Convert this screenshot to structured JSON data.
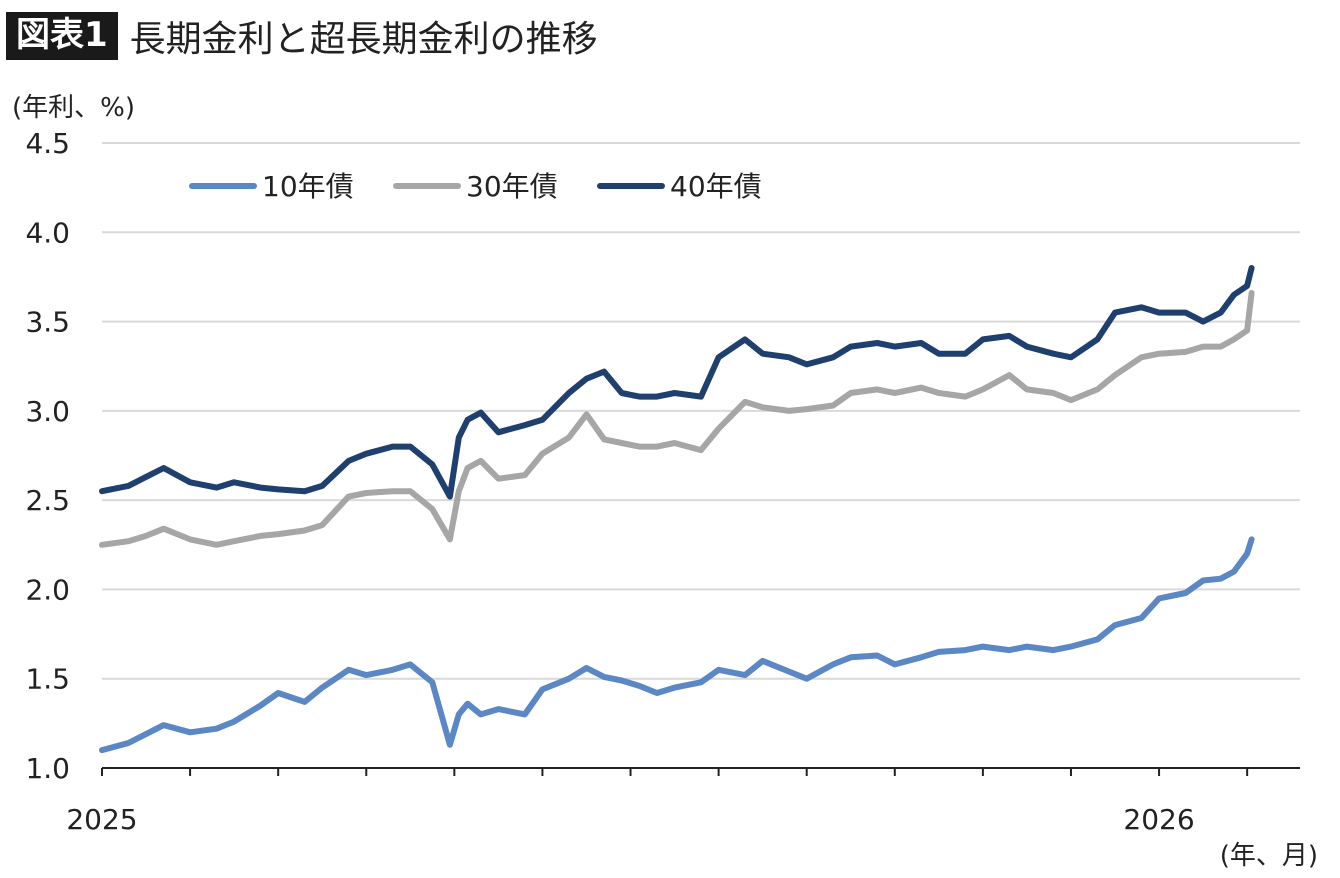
{
  "header": {
    "badge": "図表1",
    "title": "長期金利と超長期金利の推移"
  },
  "chart_data": {
    "type": "line",
    "title": "長期金利と超長期金利の推移",
    "ylabel": "(年利、%)",
    "xlabel": "(年、月)",
    "ylim": [
      1.0,
      4.5
    ],
    "yticks": [
      "1.0",
      "1.5",
      "2.0",
      "2.5",
      "3.0",
      "3.5",
      "4.0",
      "4.5"
    ],
    "xlim": [
      0,
      13.6
    ],
    "xticks": [
      0,
      1,
      2,
      3,
      4,
      5,
      6,
      7,
      8,
      9,
      10,
      11,
      12,
      13
    ],
    "xtick_labels": [
      {
        "x": 0,
        "label": "2025"
      },
      {
        "x": 12,
        "label": "2026"
      }
    ],
    "grid": "horizontal",
    "legend": "top-left",
    "colors": {
      "10y": "#5b87c5",
      "30y": "#a6a6a6",
      "40y": "#1f3f6e"
    },
    "series": [
      {
        "name": "10年債",
        "color": "#5b87c5",
        "x": [
          0,
          0.3,
          0.5,
          0.7,
          1.0,
          1.3,
          1.5,
          1.8,
          2.0,
          2.3,
          2.5,
          2.8,
          3.0,
          3.3,
          3.5,
          3.75,
          3.95,
          4.05,
          4.15,
          4.3,
          4.5,
          4.8,
          5.0,
          5.3,
          5.5,
          5.7,
          5.9,
          6.1,
          6.3,
          6.5,
          6.8,
          7.0,
          7.3,
          7.5,
          7.8,
          8.0,
          8.3,
          8.5,
          8.8,
          9.0,
          9.3,
          9.5,
          9.8,
          10.0,
          10.3,
          10.5,
          10.8,
          11.0,
          11.3,
          11.5,
          11.8,
          12.0,
          12.3,
          12.5,
          12.7,
          12.85,
          13.0,
          13.05
        ],
        "values": [
          1.1,
          1.14,
          1.19,
          1.24,
          1.2,
          1.22,
          1.26,
          1.35,
          1.42,
          1.37,
          1.45,
          1.55,
          1.52,
          1.55,
          1.58,
          1.48,
          1.13,
          1.3,
          1.36,
          1.3,
          1.33,
          1.3,
          1.44,
          1.5,
          1.56,
          1.51,
          1.49,
          1.46,
          1.42,
          1.45,
          1.48,
          1.55,
          1.52,
          1.6,
          1.54,
          1.5,
          1.58,
          1.62,
          1.63,
          1.58,
          1.62,
          1.65,
          1.66,
          1.68,
          1.66,
          1.68,
          1.66,
          1.68,
          1.72,
          1.8,
          1.84,
          1.95,
          1.98,
          2.05,
          2.06,
          2.1,
          2.2,
          2.28
        ]
      },
      {
        "name": "30年債",
        "color": "#a6a6a6",
        "x": [
          0,
          0.3,
          0.5,
          0.7,
          1.0,
          1.3,
          1.5,
          1.8,
          2.0,
          2.3,
          2.5,
          2.8,
          3.0,
          3.3,
          3.5,
          3.75,
          3.95,
          4.05,
          4.15,
          4.3,
          4.5,
          4.8,
          5.0,
          5.3,
          5.5,
          5.7,
          5.9,
          6.1,
          6.3,
          6.5,
          6.8,
          7.0,
          7.3,
          7.5,
          7.8,
          8.0,
          8.3,
          8.5,
          8.8,
          9.0,
          9.3,
          9.5,
          9.8,
          10.0,
          10.3,
          10.5,
          10.8,
          11.0,
          11.3,
          11.5,
          11.8,
          12.0,
          12.3,
          12.5,
          12.7,
          12.85,
          13.0,
          13.05
        ],
        "values": [
          2.25,
          2.27,
          2.3,
          2.34,
          2.28,
          2.25,
          2.27,
          2.3,
          2.31,
          2.33,
          2.36,
          2.52,
          2.54,
          2.55,
          2.55,
          2.45,
          2.28,
          2.55,
          2.68,
          2.72,
          2.62,
          2.64,
          2.76,
          2.85,
          2.98,
          2.84,
          2.82,
          2.8,
          2.8,
          2.82,
          2.78,
          2.9,
          3.05,
          3.02,
          3.0,
          3.01,
          3.03,
          3.1,
          3.12,
          3.1,
          3.13,
          3.1,
          3.08,
          3.12,
          3.2,
          3.12,
          3.1,
          3.06,
          3.12,
          3.2,
          3.3,
          3.32,
          3.33,
          3.36,
          3.36,
          3.4,
          3.45,
          3.66
        ]
      },
      {
        "name": "40年債",
        "color": "#1f3f6e",
        "x": [
          0,
          0.3,
          0.5,
          0.7,
          1.0,
          1.3,
          1.5,
          1.8,
          2.0,
          2.3,
          2.5,
          2.8,
          3.0,
          3.3,
          3.5,
          3.75,
          3.95,
          4.05,
          4.15,
          4.3,
          4.5,
          4.8,
          5.0,
          5.3,
          5.5,
          5.7,
          5.9,
          6.1,
          6.3,
          6.5,
          6.8,
          7.0,
          7.3,
          7.5,
          7.8,
          8.0,
          8.3,
          8.5,
          8.8,
          9.0,
          9.3,
          9.5,
          9.8,
          10.0,
          10.3,
          10.5,
          10.8,
          11.0,
          11.3,
          11.5,
          11.8,
          12.0,
          12.3,
          12.5,
          12.7,
          12.85,
          13.0,
          13.05
        ],
        "values": [
          2.55,
          2.58,
          2.63,
          2.68,
          2.6,
          2.57,
          2.6,
          2.57,
          2.56,
          2.55,
          2.58,
          2.72,
          2.76,
          2.8,
          2.8,
          2.7,
          2.52,
          2.85,
          2.95,
          2.99,
          2.88,
          2.92,
          2.95,
          3.1,
          3.18,
          3.22,
          3.1,
          3.08,
          3.08,
          3.1,
          3.08,
          3.3,
          3.4,
          3.32,
          3.3,
          3.26,
          3.3,
          3.36,
          3.38,
          3.36,
          3.38,
          3.32,
          3.32,
          3.4,
          3.42,
          3.36,
          3.32,
          3.3,
          3.4,
          3.55,
          3.58,
          3.55,
          3.55,
          3.5,
          3.55,
          3.65,
          3.7,
          3.8
        ]
      }
    ]
  }
}
